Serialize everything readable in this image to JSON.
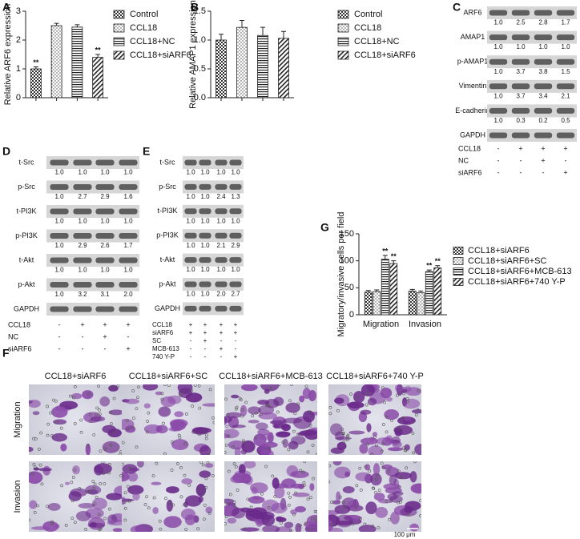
{
  "chart_data": [
    {
      "type": "bar",
      "panel": "A",
      "ylabel": "Relative ARF6 expression",
      "categories": [
        "Control",
        "CCL18",
        "CCL18+NC",
        "CCL18+siARF6"
      ],
      "values": [
        1.0,
        2.5,
        2.45,
        1.4
      ],
      "errors": [
        0.07,
        0.08,
        0.08,
        0.1
      ],
      "patterns": [
        "cross",
        "dots",
        "hlines",
        "diag"
      ],
      "annotations": [
        {
          "index": 0,
          "text": "**"
        },
        {
          "index": 3,
          "text": "**"
        }
      ],
      "ylim": [
        0,
        3
      ],
      "yticks": [
        0,
        1,
        2,
        3
      ]
    },
    {
      "type": "bar",
      "panel": "B",
      "ylabel": "Relative AMAP1 expression",
      "categories": [
        "Control",
        "CCL18",
        "CCL18+NC",
        "CCL18+siARF6"
      ],
      "values": [
        1.0,
        1.22,
        1.08,
        1.03
      ],
      "errors": [
        0.1,
        0.12,
        0.14,
        0.12
      ],
      "patterns": [
        "cross",
        "dots",
        "hlines",
        "diag"
      ],
      "ylim": [
        0,
        1.5
      ],
      "yticks": [
        {
          "value": 0,
          "label": "0.0"
        },
        {
          "value": 0.5,
          "label": "0.5"
        },
        {
          "value": 1,
          "label": "1.0"
        },
        {
          "value": 1.5,
          "label": "1.5"
        }
      ]
    },
    {
      "type": "grouped-bar",
      "panel": "G",
      "ylabel": "Migratory/invasive cells per field",
      "categories": [
        "Migration",
        "Invasion"
      ],
      "series": [
        {
          "name": "CCL18+siARF6",
          "pattern": "cross",
          "values": [
            42,
            44
          ],
          "errors": [
            3,
            3
          ]
        },
        {
          "name": "CCL18+siARF6+SC",
          "pattern": "dots",
          "values": [
            43,
            41
          ],
          "errors": [
            3,
            3
          ]
        },
        {
          "name": "CCL18+siARF6+MCB-613",
          "pattern": "hlines",
          "values": [
            103,
            80
          ],
          "errors": [
            7,
            3
          ]
        },
        {
          "name": "CCL18+siARF6+740 Y-P",
          "pattern": "diag",
          "values": [
            95,
            87
          ],
          "errors": [
            5,
            4
          ]
        }
      ],
      "annotations": [
        {
          "category": 0,
          "series": 2,
          "text": "**"
        },
        {
          "category": 0,
          "series": 3,
          "text": "**"
        },
        {
          "category": 1,
          "series": 2,
          "text": "**"
        },
        {
          "category": 1,
          "series": 3,
          "text": "**"
        }
      ],
      "ylim": [
        0,
        150
      ],
      "yticks": [
        0,
        50,
        100,
        150
      ]
    }
  ],
  "blots": [
    {
      "panel": "C",
      "rows": [
        {
          "name": "ARF6",
          "values": [
            "1.0",
            "2.5",
            "2.8",
            "1.7"
          ]
        },
        {
          "name": "AMAP1",
          "values": [
            "1.0",
            "1.0",
            "1.0",
            "1.0"
          ]
        },
        {
          "name": "p-AMAP1",
          "values": [
            "1.0",
            "3.7",
            "3.8",
            "1.5"
          ]
        },
        {
          "name": "Vimentin",
          "values": [
            "1.0",
            "3.7",
            "3.4",
            "2.1"
          ]
        },
        {
          "name": "E-cadherin",
          "values": [
            "1.0",
            "0.3",
            "0.2",
            "0.5"
          ]
        },
        {
          "name": "GAPDH"
        }
      ],
      "conditions": [
        {
          "name": "CCL18",
          "signs": [
            "-",
            "+",
            "+",
            "+"
          ]
        },
        {
          "name": "NC",
          "signs": [
            "-",
            "-",
            "+",
            "-"
          ]
        },
        {
          "name": "siARF6",
          "signs": [
            "-",
            "-",
            "-",
            "+"
          ]
        }
      ]
    },
    {
      "panel": "D",
      "rows": [
        {
          "name": "t-Src",
          "values": [
            "1.0",
            "1.0",
            "1.0",
            "1.0"
          ]
        },
        {
          "name": "p-Src",
          "values": [
            "1.0",
            "2.7",
            "2.9",
            "1.6"
          ]
        },
        {
          "name": "t-PI3K",
          "values": [
            "1.0",
            "1.0",
            "1.0",
            "1.0"
          ]
        },
        {
          "name": "p-PI3K",
          "values": [
            "1.0",
            "2.9",
            "2.6",
            "1.7"
          ]
        },
        {
          "name": "t-Akt",
          "values": [
            "1.0",
            "1.0",
            "1.0",
            "1.0"
          ]
        },
        {
          "name": "p-Akt",
          "values": [
            "1.0",
            "3.2",
            "3.1",
            "2.0"
          ]
        },
        {
          "name": "GAPDH"
        }
      ],
      "conditions": [
        {
          "name": "CCL18",
          "signs": [
            "-",
            "+",
            "+",
            "+"
          ]
        },
        {
          "name": "NC",
          "signs": [
            "-",
            "-",
            "+",
            "-"
          ]
        },
        {
          "name": "siARF6",
          "signs": [
            "-",
            "-",
            "-",
            "+"
          ]
        }
      ]
    },
    {
      "panel": "E",
      "rows": [
        {
          "name": "t-Src",
          "values": [
            "1.0",
            "1.0",
            "1.0",
            "1.0"
          ]
        },
        {
          "name": "p-Src",
          "values": [
            "1.0",
            "1.0",
            "2.4",
            "1.3"
          ]
        },
        {
          "name": "t-PI3K",
          "values": [
            "1.0",
            "1.0",
            "1.0",
            "1.0"
          ]
        },
        {
          "name": "p-PI3K",
          "values": [
            "1.0",
            "1.0",
            "2.1",
            "2.9"
          ]
        },
        {
          "name": "t-Akt",
          "values": [
            "1.0",
            "1.0",
            "1.0",
            "1.0"
          ]
        },
        {
          "name": "p-Akt",
          "values": [
            "1.0",
            "1.0",
            "2.0",
            "2.7"
          ]
        },
        {
          "name": "GAPDH"
        }
      ],
      "conditions": [
        {
          "name": "CCL18",
          "signs": [
            "+",
            "+",
            "+",
            "+"
          ]
        },
        {
          "name": "siARF6",
          "signs": [
            "+",
            "+",
            "+",
            "+"
          ]
        },
        {
          "name": "SC",
          "signs": [
            "-",
            "+",
            "-",
            "-"
          ]
        },
        {
          "name": "MCB-613",
          "signs": [
            "-",
            "-",
            "+",
            "-"
          ]
        },
        {
          "name": "740 Y-P",
          "signs": [
            "-",
            "-",
            "-",
            "+"
          ]
        }
      ]
    }
  ],
  "micrographs": {
    "panel": "F",
    "columns": [
      "CCL18+siARF6",
      "CCL18+siARF6+SC",
      "CCL18+siARF6+MCB-613",
      "CCL18+siARF6+740 Y-P"
    ],
    "rows": [
      "Migration",
      "Invasion"
    ],
    "scale_bar": "100 μm"
  }
}
